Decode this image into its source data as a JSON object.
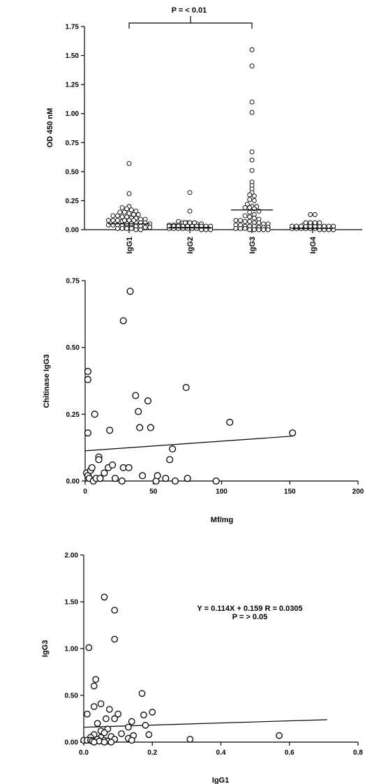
{
  "chart_data": [
    {
      "type": "scatter",
      "subtype": "dot-plot",
      "ylabel": "OD 450 nM",
      "xlabel": "",
      "ylim": [
        0,
        1.75
      ],
      "yticks": [
        "0.00",
        "0.25",
        "0.50",
        "0.75",
        "1.00",
        "1.25",
        "1.50",
        "1.75"
      ],
      "categories": [
        "IgG1",
        "IgG2",
        "IgG3",
        "IgG4"
      ],
      "annotation": "P = < 0.01",
      "bracket": [
        "IgG1",
        "IgG3"
      ],
      "median_lines": [
        0.05,
        0.02,
        0.17,
        0.01
      ],
      "series": [
        {
          "values": [
            0.57,
            0.31,
            0.2,
            0.19,
            0.18,
            0.17,
            0.16,
            0.15,
            0.15,
            0.14,
            0.13,
            0.13,
            0.12,
            0.12,
            0.11,
            0.11,
            0.1,
            0.1,
            0.09,
            0.09,
            0.08,
            0.08,
            0.08,
            0.07,
            0.07,
            0.07,
            0.06,
            0.06,
            0.06,
            0.05,
            0.05,
            0.05,
            0.05,
            0.04,
            0.04,
            0.04,
            0.04,
            0.03,
            0.03,
            0.03,
            0.03,
            0.02,
            0.02,
            0.02,
            0.02,
            0.01,
            0.01,
            0.01,
            0.01,
            0.0,
            0.0
          ]
        },
        {
          "values": [
            0.32,
            0.16,
            0.07,
            0.06,
            0.06,
            0.05,
            0.05,
            0.05,
            0.04,
            0.04,
            0.04,
            0.03,
            0.03,
            0.03,
            0.03,
            0.02,
            0.02,
            0.02,
            0.02,
            0.02,
            0.01,
            0.01,
            0.01,
            0.01,
            0.01,
            0.01,
            0.01,
            0.0,
            0.0,
            0.0,
            0.0,
            0.0,
            0.0,
            0.0,
            0.0,
            0.0,
            0.0,
            0.0,
            0.0,
            0.0,
            0.0,
            0.0,
            0.0
          ]
        },
        {
          "values": [
            1.55,
            1.41,
            1.1,
            1.01,
            0.67,
            0.6,
            0.51,
            0.41,
            0.38,
            0.35,
            0.32,
            0.3,
            0.29,
            0.26,
            0.25,
            0.22,
            0.2,
            0.2,
            0.19,
            0.19,
            0.18,
            0.16,
            0.15,
            0.13,
            0.12,
            0.11,
            0.1,
            0.09,
            0.08,
            0.08,
            0.07,
            0.07,
            0.06,
            0.06,
            0.05,
            0.05,
            0.04,
            0.04,
            0.03,
            0.03,
            0.03,
            0.02,
            0.02,
            0.02,
            0.01,
            0.01,
            0.01,
            0.0,
            0.0,
            0.0,
            0.0,
            0.0
          ]
        },
        {
          "values": [
            0.13,
            0.13,
            0.06,
            0.05,
            0.04,
            0.03,
            0.02,
            0.02,
            0.02,
            0.01,
            0.01,
            0.01,
            0.01,
            0.01,
            0.01,
            0.0,
            0.0,
            0.0,
            0.0,
            0.0,
            0.0,
            0.0,
            0.0,
            0.0,
            0.0,
            0.0,
            0.0,
            0.0,
            0.0,
            0.0,
            0.0,
            0.0,
            0.0
          ]
        }
      ]
    },
    {
      "type": "scatter",
      "xlabel": "Mf/mg",
      "ylabel": "Chitinase IgG3",
      "xlim": [
        0,
        200
      ],
      "ylim": [
        0,
        0.75
      ],
      "xticks": [
        "0",
        "50",
        "100",
        "150",
        "200"
      ],
      "yticks": [
        "0.00",
        "0.25",
        "0.50",
        "0.75"
      ],
      "points": [
        [
          2,
          0.41
        ],
        [
          2,
          0.38
        ],
        [
          2,
          0.18
        ],
        [
          7,
          0.25
        ],
        [
          10,
          0.09
        ],
        [
          10,
          0.08
        ],
        [
          18,
          0.19
        ],
        [
          28,
          0.6
        ],
        [
          33,
          0.71
        ],
        [
          37,
          0.32
        ],
        [
          39,
          0.26
        ],
        [
          40,
          0.2
        ],
        [
          46,
          0.3
        ],
        [
          48,
          0.2
        ],
        [
          62,
          0.08
        ],
        [
          64,
          0.12
        ],
        [
          74,
          0.35
        ],
        [
          106,
          0.22
        ],
        [
          152,
          0.18
        ],
        [
          1,
          0.03
        ],
        [
          2,
          0.02
        ],
        [
          3,
          0.01
        ],
        [
          4,
          0.04
        ],
        [
          5,
          0.05
        ],
        [
          6,
          0.0
        ],
        [
          8,
          0.01
        ],
        [
          11,
          0.01
        ],
        [
          14,
          0.03
        ],
        [
          17,
          0.05
        ],
        [
          20,
          0.06
        ],
        [
          22,
          0.01
        ],
        [
          27,
          0.0
        ],
        [
          28,
          0.05
        ],
        [
          32,
          0.05
        ],
        [
          42,
          0.02
        ],
        [
          52,
          0.0
        ],
        [
          53,
          0.02
        ],
        [
          59,
          0.01
        ],
        [
          66,
          0.0
        ],
        [
          75,
          0.01
        ],
        [
          96,
          0.0
        ]
      ],
      "trendline": {
        "x": [
          0,
          152
        ],
        "y": [
          0.113,
          0.168
        ]
      }
    },
    {
      "type": "scatter",
      "xlabel": "IgG1",
      "ylabel": "IgG3",
      "xlim": [
        0,
        0.8
      ],
      "ylim": [
        0,
        2.0
      ],
      "xticks": [
        "0.0",
        "0.2",
        "0.4",
        "0.6",
        "0.8"
      ],
      "yticks": [
        "0.00",
        "0.50",
        "1.00",
        "1.50",
        "2.00"
      ],
      "annotation_line1": "Y = 0.114X + 0.159 R = 0.0305",
      "annotation_line2": "P = > 0.05",
      "points": [
        [
          0.06,
          1.55
        ],
        [
          0.09,
          1.41
        ],
        [
          0.09,
          1.1
        ],
        [
          0.015,
          1.01
        ],
        [
          0.035,
          0.67
        ],
        [
          0.03,
          0.6
        ],
        [
          0.17,
          0.52
        ],
        [
          0.05,
          0.41
        ],
        [
          0.03,
          0.38
        ],
        [
          0.075,
          0.35
        ],
        [
          0.2,
          0.32
        ],
        [
          0.1,
          0.3
        ],
        [
          0.01,
          0.3
        ],
        [
          0.175,
          0.29
        ],
        [
          0.065,
          0.25
        ],
        [
          0.09,
          0.25
        ],
        [
          0.14,
          0.22
        ],
        [
          0.04,
          0.2
        ],
        [
          0.18,
          0.18
        ],
        [
          0.13,
          0.16
        ],
        [
          0.07,
          0.14
        ],
        [
          0.05,
          0.12
        ],
        [
          0.06,
          0.1
        ],
        [
          0.11,
          0.09
        ],
        [
          0.19,
          0.08
        ],
        [
          0.03,
          0.08
        ],
        [
          0.145,
          0.07
        ],
        [
          0.57,
          0.07
        ],
        [
          0.08,
          0.06
        ],
        [
          0.05,
          0.05
        ],
        [
          0.02,
          0.05
        ],
        [
          0.13,
          0.04
        ],
        [
          0.31,
          0.03
        ],
        [
          0.04,
          0.03
        ],
        [
          0.09,
          0.03
        ],
        [
          0.0,
          0.02
        ],
        [
          0.01,
          0.02
        ],
        [
          0.02,
          0.02
        ],
        [
          0.06,
          0.02
        ],
        [
          0.14,
          0.02
        ],
        [
          0.025,
          0.01
        ],
        [
          0.045,
          0.01
        ],
        [
          0.07,
          0.01
        ],
        [
          0.03,
          0.0
        ],
        [
          0.06,
          0.0
        ],
        [
          0.08,
          0.0
        ]
      ],
      "trendline": {
        "x": [
          0,
          0.71
        ],
        "y": [
          0.159,
          0.24
        ]
      }
    }
  ]
}
